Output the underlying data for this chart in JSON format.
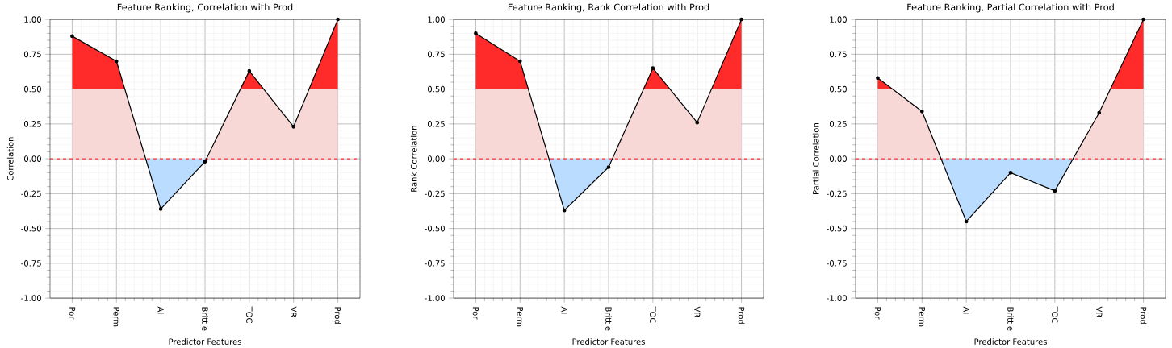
{
  "chart_data": [
    {
      "type": "area",
      "title": "Feature Ranking, Correlation with Prod",
      "xlabel": "Predictor Features",
      "ylabel": "Correlation",
      "categories": [
        "Por",
        "Perm",
        "AI",
        "Brittle",
        "TOC",
        "VR",
        "Prod"
      ],
      "series": [
        {
          "color": "#000000",
          "values": [
            0.88,
            0.7,
            -0.36,
            -0.02,
            0.63,
            0.23,
            1.0
          ]
        }
      ],
      "ylim": [
        -1,
        1
      ],
      "yticks": [
        {
          "value": -1,
          "label": "-1.00"
        },
        {
          "value": -0.75,
          "label": "-0.75"
        },
        {
          "value": -0.5,
          "label": "-0.50"
        },
        {
          "value": -0.25,
          "label": "-0.25"
        },
        {
          "value": 0,
          "label": "0.00"
        },
        {
          "value": 0.25,
          "label": "0.25"
        },
        {
          "value": 0.5,
          "label": "0.50"
        },
        {
          "value": 0.75,
          "label": "0.75"
        },
        {
          "value": 1,
          "label": "1.00"
        }
      ],
      "ref_lines": [
        {
          "axis": "y",
          "value": 0,
          "color": "#ff0000",
          "line_style": "dashed"
        }
      ],
      "grid": true,
      "marker": "circle",
      "line_style": "solid"
    },
    {
      "type": "area",
      "title": "Feature Ranking, Rank Correlation with Prod",
      "xlabel": "Predictor Features",
      "ylabel": "Rank Correlation",
      "categories": [
        "Por",
        "Perm",
        "AI",
        "Brittle",
        "TOC",
        "VR",
        "Prod"
      ],
      "series": [
        {
          "color": "#000000",
          "values": [
            0.9,
            0.7,
            -0.37,
            -0.06,
            0.65,
            0.26,
            1.0
          ]
        }
      ],
      "ylim": [
        -1,
        1
      ],
      "yticks": [
        {
          "value": -1,
          "label": "-1.00"
        },
        {
          "value": -0.75,
          "label": "-0.75"
        },
        {
          "value": -0.5,
          "label": "-0.50"
        },
        {
          "value": -0.25,
          "label": "-0.25"
        },
        {
          "value": 0,
          "label": "0.00"
        },
        {
          "value": 0.25,
          "label": "0.25"
        },
        {
          "value": 0.5,
          "label": "0.50"
        },
        {
          "value": 0.75,
          "label": "0.75"
        },
        {
          "value": 1,
          "label": "1.00"
        }
      ],
      "ref_lines": [
        {
          "axis": "y",
          "value": 0,
          "color": "#ff0000",
          "line_style": "dashed"
        }
      ],
      "grid": true,
      "marker": "circle",
      "line_style": "solid"
    },
    {
      "type": "area",
      "title": "Feature Ranking, Partial Correlation with Prod",
      "xlabel": "Predictor Features",
      "ylabel": "Partial Correlation",
      "categories": [
        "Por",
        "Perm",
        "AI",
        "Brittle",
        "TOC",
        "VR",
        "Prod"
      ],
      "series": [
        {
          "color": "#000000",
          "values": [
            0.58,
            0.34,
            -0.45,
            -0.1,
            -0.23,
            0.33,
            1.0
          ]
        }
      ],
      "ylim": [
        -1,
        1
      ],
      "yticks": [
        {
          "value": -1,
          "label": "-1.00"
        },
        {
          "value": -0.75,
          "label": "-0.75"
        },
        {
          "value": -0.5,
          "label": "-0.50"
        },
        {
          "value": -0.25,
          "label": "-0.25"
        },
        {
          "value": 0,
          "label": "0.00"
        },
        {
          "value": 0.25,
          "label": "0.25"
        },
        {
          "value": 0.5,
          "label": "0.50"
        },
        {
          "value": 0.75,
          "label": "0.75"
        },
        {
          "value": 1,
          "label": "1.00"
        }
      ],
      "ref_lines": [
        {
          "axis": "y",
          "value": 0,
          "color": "#ff0000",
          "line_style": "dashed"
        }
      ],
      "grid": true,
      "marker": "circle",
      "line_style": "solid"
    }
  ]
}
